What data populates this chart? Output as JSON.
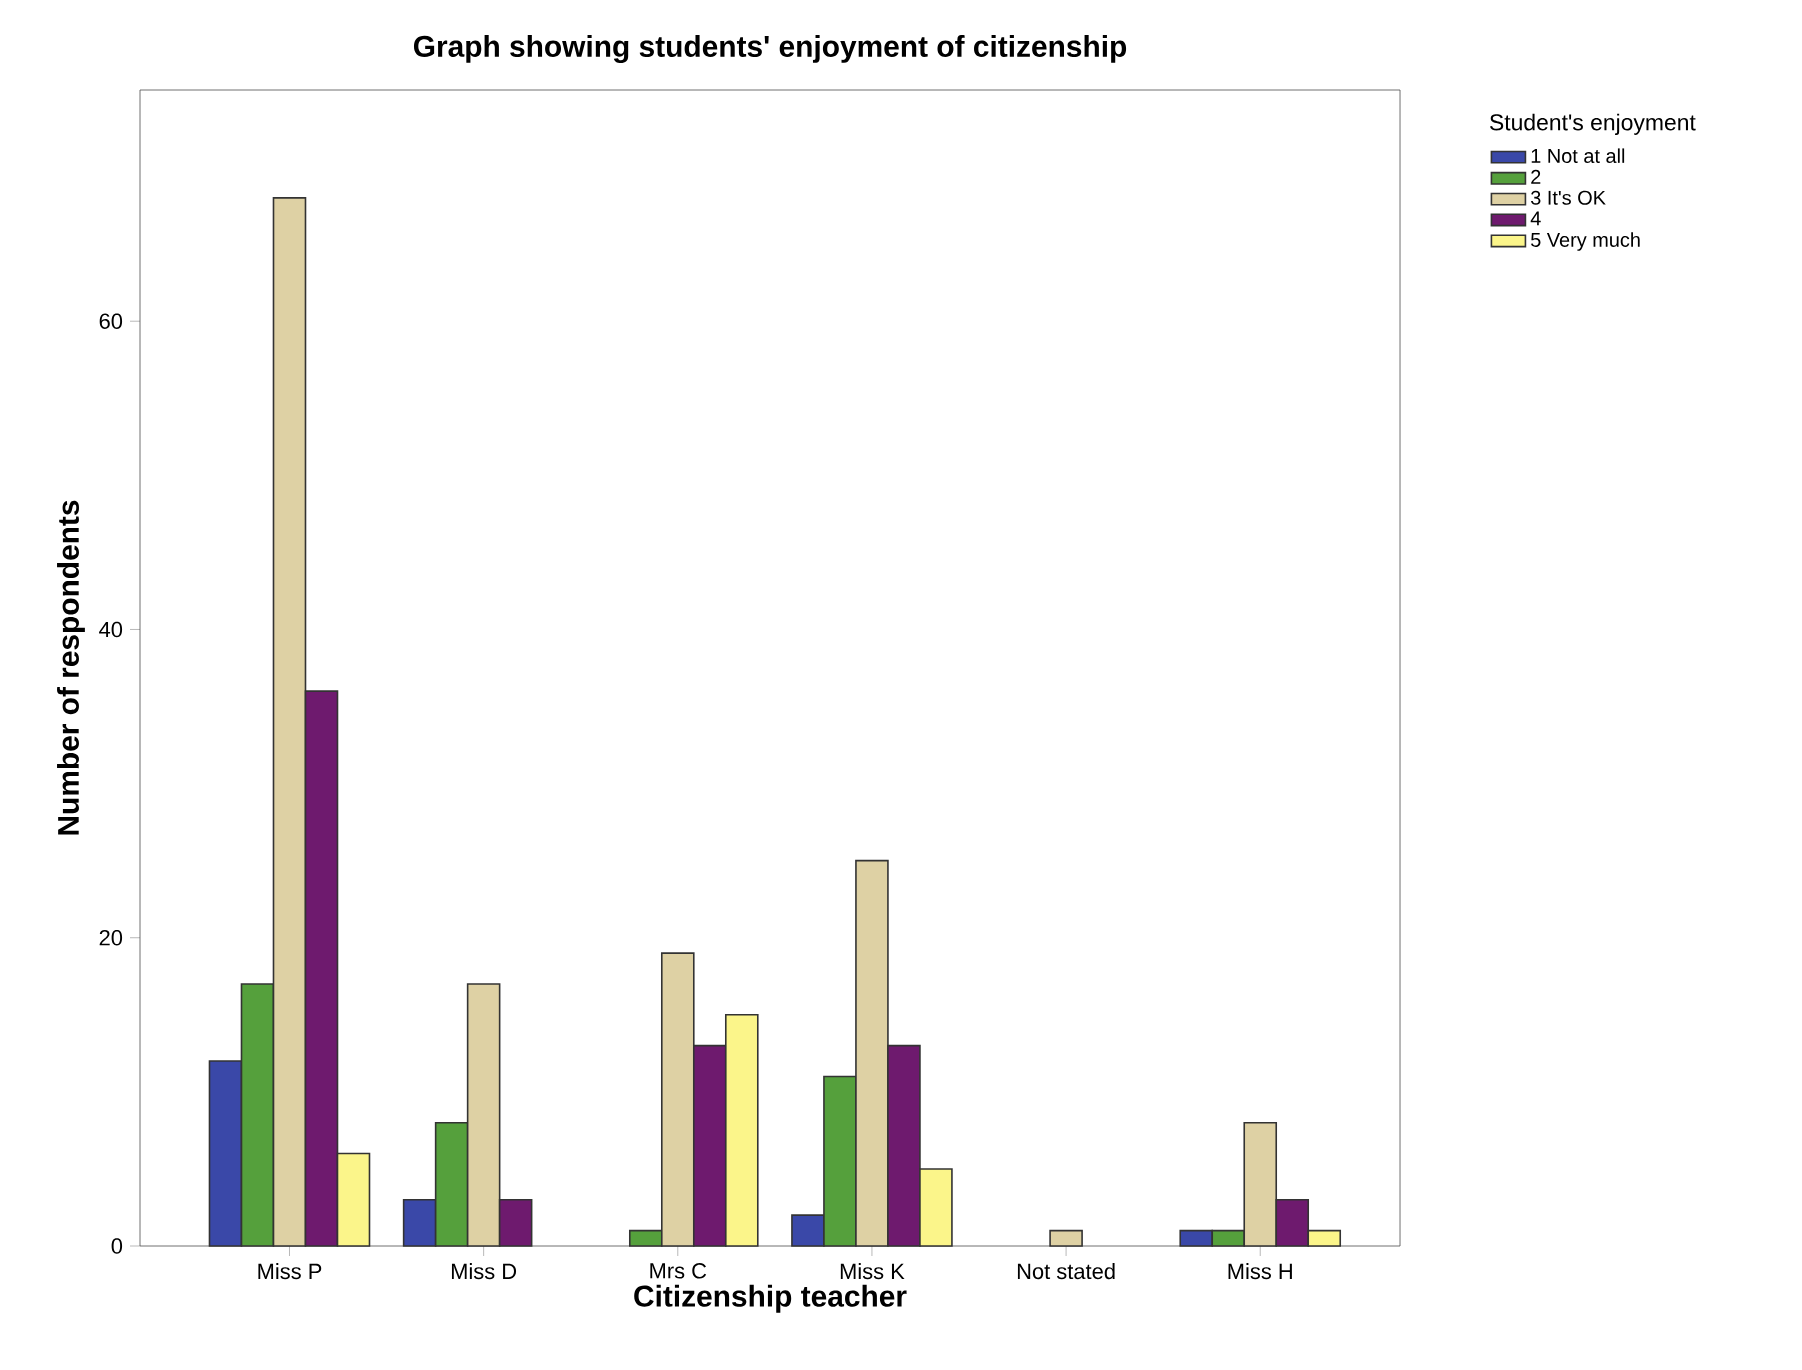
{
  "chart_data": {
    "type": "bar",
    "title": "Graph showing students' enjoyment of citizenship",
    "xlabel": "Citizenship teacher",
    "ylabel": "Number of respondents",
    "legend_title": "Student's enjoyment",
    "categories": [
      "Miss P",
      "Miss D",
      "Mrs C",
      "Miss K",
      "Not stated",
      "Miss H"
    ],
    "series": [
      {
        "name": "1 Not at all",
        "color": "#3a48a8",
        "values": [
          12,
          3,
          null,
          2,
          null,
          1
        ]
      },
      {
        "name": "2",
        "color": "#55a03c",
        "values": [
          17,
          8,
          1,
          11,
          null,
          1
        ]
      },
      {
        "name": "3 It's OK",
        "color": "#ded1a4",
        "values": [
          68,
          17,
          19,
          25,
          1,
          8
        ]
      },
      {
        "name": "4",
        "color": "#6e1a6e",
        "values": [
          36,
          3,
          13,
          13,
          null,
          3
        ]
      },
      {
        "name": "5 Very much",
        "color": "#fbf58a",
        "values": [
          6,
          null,
          15,
          5,
          null,
          1
        ]
      }
    ],
    "ylim": [
      0,
      75
    ],
    "yticks": [
      0,
      20,
      40,
      60
    ],
    "grid": false,
    "legend": "right"
  }
}
